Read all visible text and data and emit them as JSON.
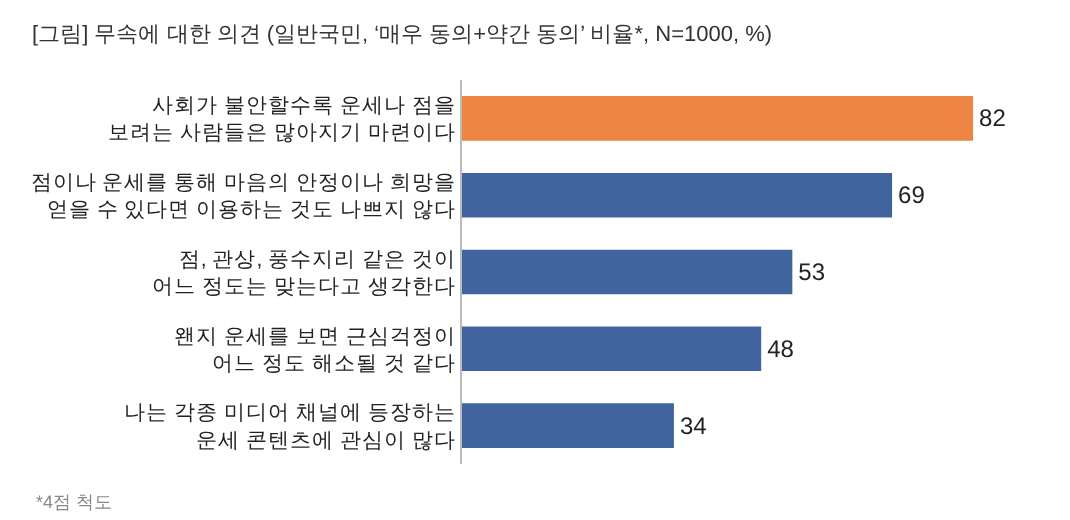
{
  "chart_data": {
    "type": "bar",
    "orientation": "horizontal",
    "title": "[그림] 무속에 대한 의견 (일반국민, ‘매우 동의+약간 동의’ 비율*, N=1000, %)",
    "categories": [
      "사회가 불안할수록 운세나 점을\n보려는 사람들은 많아지기 마련이다",
      "점이나 운세를 통해 마음의 안정이나 희망을\n얻을 수 있다면 이용하는 것도 나쁘지 않다",
      "점, 관상, 풍수지리 같은 것이\n어느 정도는 맞는다고 생각한다",
      "왠지 운세를 보면 근심걱정이\n어느 정도 해소될 것 같다",
      "나는 각종 미디어 채널에 등장하는\n운세 콘텐츠에 관심이 많다"
    ],
    "values": [
      82,
      69,
      53,
      48,
      34
    ],
    "colors": [
      "#ed8545",
      "#42649e",
      "#42649e",
      "#42649e",
      "#42649e"
    ],
    "data_labels": true,
    "tick_labels": "y",
    "annotations": [
      "*4점 척도"
    ]
  }
}
